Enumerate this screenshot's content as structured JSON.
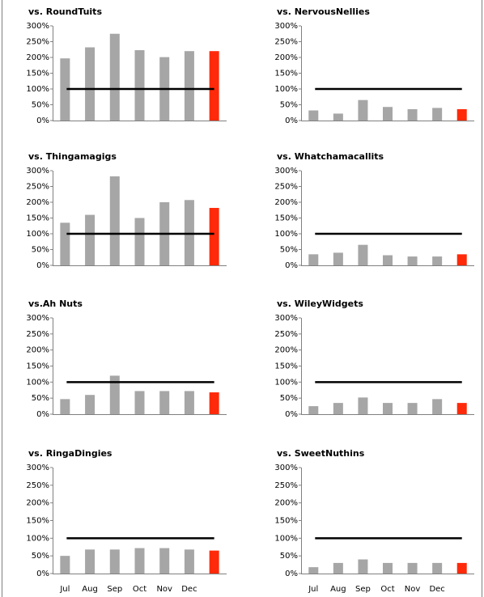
{
  "chart_data": [
    {
      "type": "bar",
      "title": "vs. RoundTuits",
      "values": [
        197,
        232,
        275,
        223,
        201,
        220,
        220
      ],
      "colors": [
        "#a6a6a6",
        "#a6a6a6",
        "#a6a6a6",
        "#a6a6a6",
        "#a6a6a6",
        "#a6a6a6",
        "#ff2a0a"
      ],
      "target": 100,
      "target_color": "#000000",
      "ylim": [
        0,
        300
      ],
      "yticks": [
        {
          "value": 0,
          "label": "0%"
        },
        {
          "value": 50,
          "label": "50%"
        },
        {
          "value": 100,
          "label": "100%"
        },
        {
          "value": 150,
          "label": "150%"
        },
        {
          "value": 200,
          "label": "200%"
        },
        {
          "value": 250,
          "label": "250%"
        },
        {
          "value": 300,
          "label": "300%"
        }
      ]
    },
    {
      "type": "bar",
      "title": "vs. NervousNellies",
      "values": [
        32,
        22,
        65,
        43,
        36,
        40,
        36
      ],
      "colors": [
        "#a6a6a6",
        "#a6a6a6",
        "#a6a6a6",
        "#a6a6a6",
        "#a6a6a6",
        "#a6a6a6",
        "#ff2a0a"
      ],
      "target": 100,
      "target_color": "#000000",
      "ylim": [
        0,
        300
      ],
      "yticks": [
        {
          "value": 0,
          "label": "0%"
        },
        {
          "value": 50,
          "label": "50%"
        },
        {
          "value": 100,
          "label": "100%"
        },
        {
          "value": 150,
          "label": "150%"
        },
        {
          "value": 200,
          "label": "200%"
        },
        {
          "value": 250,
          "label": "250%"
        },
        {
          "value": 300,
          "label": "300%"
        }
      ]
    },
    {
      "type": "bar",
      "title": "vs. Thingamagigs",
      "values": [
        135,
        160,
        282,
        150,
        200,
        207,
        182
      ],
      "colors": [
        "#a6a6a6",
        "#a6a6a6",
        "#a6a6a6",
        "#a6a6a6",
        "#a6a6a6",
        "#a6a6a6",
        "#ff2a0a"
      ],
      "target": 100,
      "target_color": "#000000",
      "ylim": [
        0,
        300
      ],
      "yticks": [
        {
          "value": 0,
          "label": "0%"
        },
        {
          "value": 50,
          "label": "50%"
        },
        {
          "value": 100,
          "label": "100%"
        },
        {
          "value": 150,
          "label": "150%"
        },
        {
          "value": 200,
          "label": "200%"
        },
        {
          "value": 250,
          "label": "250%"
        },
        {
          "value": 300,
          "label": "300%"
        }
      ]
    },
    {
      "type": "bar",
      "title": "vs. Whatchamacallits",
      "values": [
        35,
        40,
        65,
        32,
        28,
        28,
        35
      ],
      "colors": [
        "#a6a6a6",
        "#a6a6a6",
        "#a6a6a6",
        "#a6a6a6",
        "#a6a6a6",
        "#a6a6a6",
        "#ff2a0a"
      ],
      "target": 100,
      "target_color": "#000000",
      "ylim": [
        0,
        300
      ],
      "yticks": [
        {
          "value": 0,
          "label": "0%"
        },
        {
          "value": 50,
          "label": "50%"
        },
        {
          "value": 100,
          "label": "100%"
        },
        {
          "value": 150,
          "label": "150%"
        },
        {
          "value": 200,
          "label": "200%"
        },
        {
          "value": 250,
          "label": "250%"
        },
        {
          "value": 300,
          "label": "300%"
        }
      ]
    },
    {
      "type": "bar",
      "title": "vs.Ah Nuts",
      "values": [
        47,
        60,
        120,
        72,
        72,
        72,
        68
      ],
      "colors": [
        "#a6a6a6",
        "#a6a6a6",
        "#a6a6a6",
        "#a6a6a6",
        "#a6a6a6",
        "#a6a6a6",
        "#ff2a0a"
      ],
      "target": 100,
      "target_color": "#000000",
      "ylim": [
        0,
        300
      ],
      "yticks": [
        {
          "value": 0,
          "label": "0%"
        },
        {
          "value": 50,
          "label": "50%"
        },
        {
          "value": 100,
          "label": "100%"
        },
        {
          "value": 150,
          "label": "150%"
        },
        {
          "value": 200,
          "label": "200%"
        },
        {
          "value": 250,
          "label": "250%"
        },
        {
          "value": 300,
          "label": "300%"
        }
      ]
    },
    {
      "type": "bar",
      "title": "vs. WileyWidgets",
      "values": [
        25,
        35,
        52,
        35,
        35,
        47,
        35
      ],
      "colors": [
        "#a6a6a6",
        "#a6a6a6",
        "#a6a6a6",
        "#a6a6a6",
        "#a6a6a6",
        "#a6a6a6",
        "#ff2a0a"
      ],
      "target": 100,
      "target_color": "#000000",
      "ylim": [
        0,
        300
      ],
      "yticks": [
        {
          "value": 0,
          "label": "0%"
        },
        {
          "value": 50,
          "label": "50%"
        },
        {
          "value": 100,
          "label": "100%"
        },
        {
          "value": 150,
          "label": "150%"
        },
        {
          "value": 200,
          "label": "200%"
        },
        {
          "value": 250,
          "label": "250%"
        },
        {
          "value": 300,
          "label": "300%"
        }
      ]
    },
    {
      "type": "bar",
      "title": "vs. RingaDingies",
      "categories": [
        "Jul",
        "Aug",
        "Sep",
        "Oct",
        "Nov",
        "Dec",
        null
      ],
      "values": [
        50,
        68,
        68,
        72,
        72,
        68,
        65
      ],
      "colors": [
        "#a6a6a6",
        "#a6a6a6",
        "#a6a6a6",
        "#a6a6a6",
        "#a6a6a6",
        "#a6a6a6",
        "#ff2a0a"
      ],
      "target": 100,
      "target_color": "#000000",
      "ylim": [
        0,
        300
      ],
      "yticks": [
        {
          "value": 0,
          "label": "0%"
        },
        {
          "value": 50,
          "label": "50%"
        },
        {
          "value": 100,
          "label": "100%"
        },
        {
          "value": 150,
          "label": "150%"
        },
        {
          "value": 200,
          "label": "200%"
        },
        {
          "value": 250,
          "label": "250%"
        },
        {
          "value": 300,
          "label": "300%"
        }
      ]
    },
    {
      "type": "bar",
      "title": "vs. SweetNuthins",
      "categories": [
        "Jul",
        "Aug",
        "Sep",
        "Oct",
        "Nov",
        "Dec",
        null
      ],
      "values": [
        18,
        30,
        40,
        30,
        30,
        30,
        30
      ],
      "colors": [
        "#a6a6a6",
        "#a6a6a6",
        "#a6a6a6",
        "#a6a6a6",
        "#a6a6a6",
        "#a6a6a6",
        "#ff2a0a"
      ],
      "target": 100,
      "target_color": "#000000",
      "ylim": [
        0,
        300
      ],
      "yticks": [
        {
          "value": 0,
          "label": "0%"
        },
        {
          "value": 50,
          "label": "50%"
        },
        {
          "value": 100,
          "label": "100%"
        },
        {
          "value": 150,
          "label": "150%"
        },
        {
          "value": 200,
          "label": "200%"
        },
        {
          "value": 250,
          "label": "250%"
        },
        {
          "value": 300,
          "label": "300%"
        }
      ]
    }
  ]
}
